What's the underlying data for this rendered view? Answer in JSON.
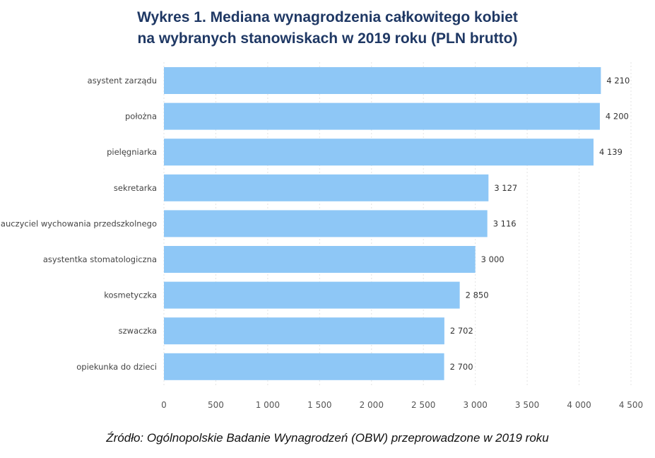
{
  "chart_data": {
    "type": "bar",
    "orientation": "horizontal",
    "title": "Wykres 1. Mediana wynagrodzenia całkowitego kobiet na wybranych stanowiskach w 2019 roku (PLN brutto)",
    "title_lines": [
      "Wykres 1. Mediana wynagrodzenia całkowitego kobiet",
      "na wybranych stanowiskach w 2019 roku (PLN brutto)"
    ],
    "categories": [
      "asystent zarządu",
      "położna",
      "pielęgniarka",
      "sekretarka",
      "nauczyciel wychowania przedszkolnego",
      "asystentka stomatologiczna",
      "kosmetyczka",
      "szwaczka",
      "opiekunka do dzieci"
    ],
    "values": [
      4210,
      4200,
      4139,
      3127,
      3116,
      3000,
      2850,
      2702,
      2700
    ],
    "data_labels": [
      "4 210",
      "4 200",
      "4 139",
      "3 127",
      "3 116",
      "3 000",
      "2 850",
      "2 702",
      "2 700"
    ],
    "xlim": [
      0,
      4500
    ],
    "x_ticks": [
      0,
      500,
      1000,
      1500,
      2000,
      2500,
      3000,
      3500,
      4000,
      4500
    ],
    "x_tick_labels": [
      "0",
      "500",
      "1 000",
      "1 500",
      "2 000",
      "2 500",
      "3 000",
      "3 500",
      "4 000",
      "4 500"
    ],
    "xlabel": "",
    "ylabel": "",
    "grid": "vertical dotted",
    "bar_color": "#8ec7f6",
    "title_color": "#1f3864"
  },
  "source": "Źródło: Ogólnopolskie Badanie Wynagrodzeń (OBW) przeprowadzone w 2019 roku"
}
